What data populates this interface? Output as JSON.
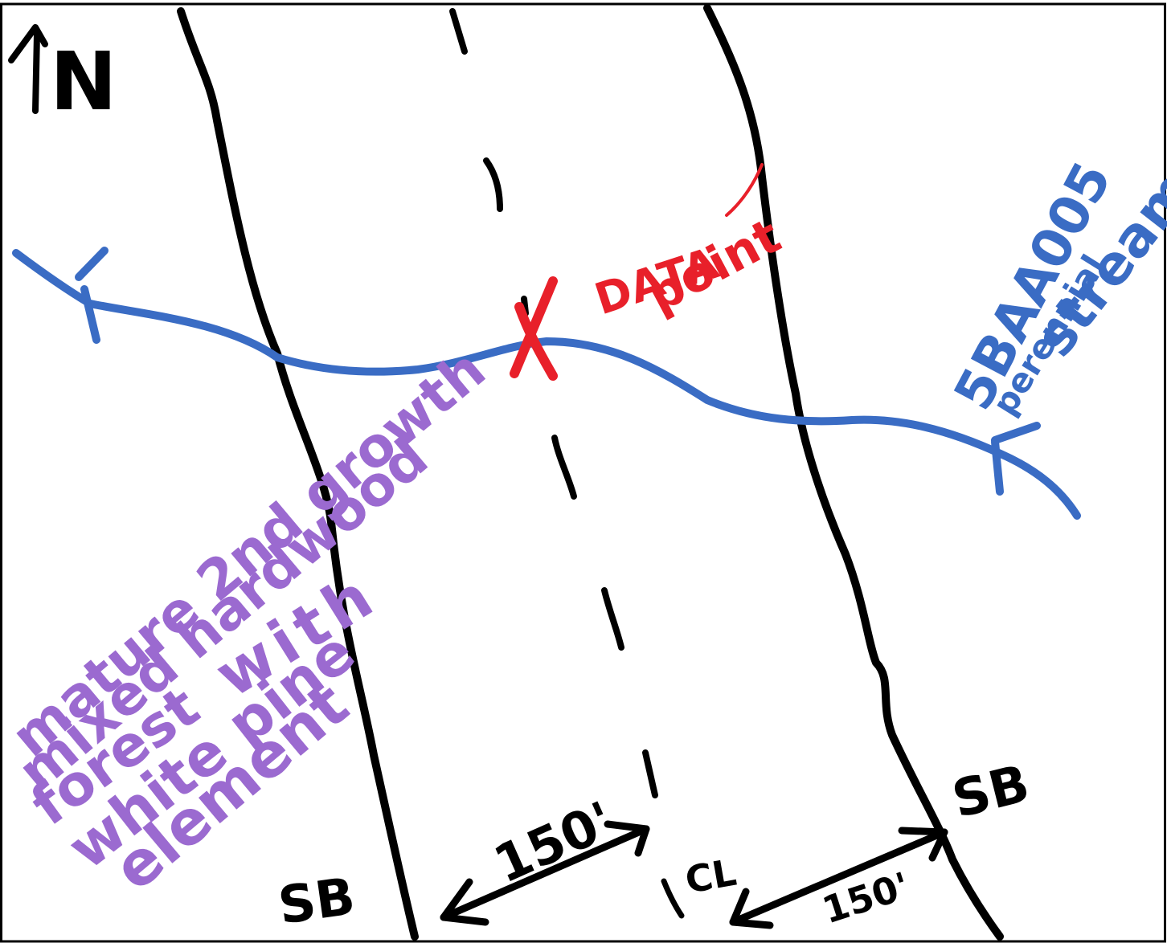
{
  "colors": {
    "ink": "#000000",
    "stream": "#3a6cc4",
    "data_point": "#e8202a",
    "forest_note": "#9b6ad0"
  },
  "north": {
    "letter": "N",
    "icon": "north-arrow-icon"
  },
  "stream": {
    "line1": "5BAA005",
    "line2": "perennial",
    "line3": "stream"
  },
  "data_point": {
    "line1": "DATA",
    "line2": "point"
  },
  "forest": {
    "line1": "mature 2nd growth",
    "line2": "mixed hardwood",
    "line3": "forest with",
    "line3a": "forest",
    "line3b": "with",
    "line4": "white pine",
    "line5": "element"
  },
  "corridor": {
    "left_label": "SB",
    "right_label": "SB",
    "centerline_label": "CL",
    "left_dimension": "150'",
    "right_dimension": "150'"
  }
}
